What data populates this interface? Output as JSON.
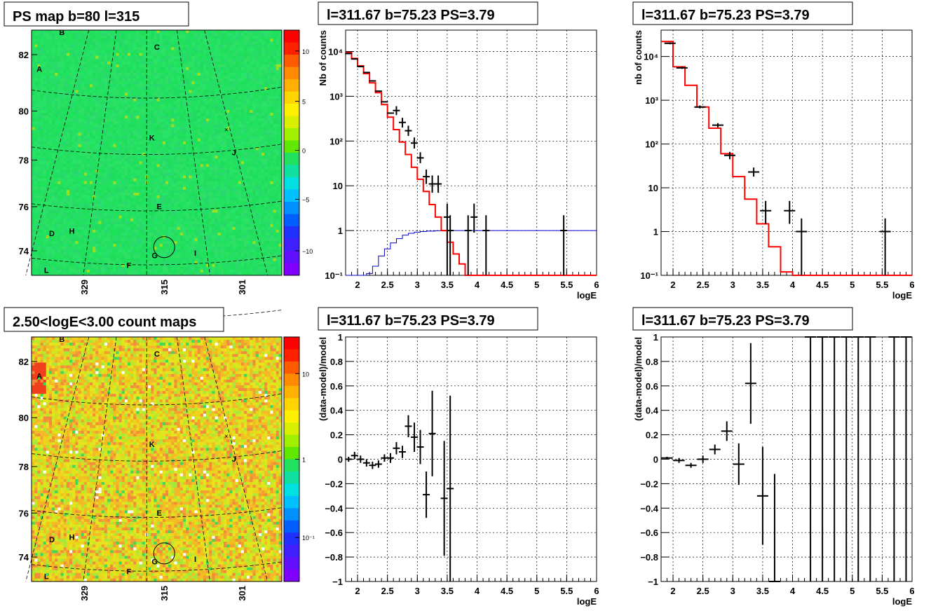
{
  "colors": {
    "model_line": "#ff0000",
    "exposure_line": "#0000cc",
    "data_marker": "#000000",
    "grid": "#000000",
    "map_bg_psmap": "#22e060",
    "map_bg_counts": "#e6e41e"
  },
  "chart_data": [
    {
      "id": "psmap",
      "type": "heatmap",
      "title": "PS map b=80 l=315",
      "xtick_labels": [
        "329",
        "315",
        "301"
      ],
      "ytick_labels": [
        "82",
        "80",
        "78",
        "76",
        "74"
      ],
      "colorbar_ticks": [
        "10",
        "5",
        "0",
        "−5",
        "−10"
      ],
      "colorbar_range": [
        -12,
        12
      ],
      "source_labels": [
        "A",
        "B",
        "C",
        "D",
        "E",
        "F",
        "G",
        "H",
        "I",
        "J",
        "K",
        "L"
      ],
      "mean_value": 0
    },
    {
      "id": "spectrum_all",
      "type": "line",
      "title": "l=311.67 b=75.23 PS=3.79",
      "xlabel": "logE",
      "ylabel": "Nb of counts",
      "xlim": [
        1.8,
        6
      ],
      "ylim": [
        0.1,
        30000
      ],
      "yscale": "log",
      "xtick_labels": [
        "2",
        "2.5",
        "3",
        "3.5",
        "4",
        "4.5",
        "5",
        "5.5",
        "6"
      ],
      "ytick_labels": [
        "10⁻¹",
        "1",
        "10",
        "10²",
        "10³",
        "10⁴"
      ],
      "grid": true,
      "model_step": {
        "edges": [
          1.8,
          1.9,
          2.0,
          2.1,
          2.2,
          2.3,
          2.4,
          2.5,
          2.6,
          2.7,
          2.8,
          2.9,
          3.0,
          3.1,
          3.2,
          3.3,
          3.4,
          3.5,
          3.6,
          3.7,
          3.8,
          3.9,
          4.0,
          4.1,
          4.2,
          6.0
        ],
        "values": [
          9500,
          7000,
          4800,
          3200,
          2000,
          1200,
          650,
          340,
          180,
          95,
          50,
          26,
          14,
          7.5,
          3.8,
          2.0,
          1.0,
          0.55,
          0.3,
          0.18,
          0.1,
          0.06,
          0.03,
          0.02,
          0.01
        ]
      },
      "exposure_step": {
        "edges": [
          1.8,
          2.15,
          2.25,
          2.35,
          2.45,
          2.55,
          2.65,
          2.75,
          2.85,
          2.95,
          3.05,
          3.15,
          3.3,
          3.5,
          6.0
        ],
        "values": [
          0.08,
          0.11,
          0.16,
          0.27,
          0.39,
          0.53,
          0.66,
          0.79,
          0.87,
          0.92,
          0.95,
          0.97,
          0.99,
          1.0
        ]
      },
      "data_points": [
        {
          "x": 1.85,
          "y": 9000
        },
        {
          "x": 1.95,
          "y": 6800
        },
        {
          "x": 2.05,
          "y": 4600
        },
        {
          "x": 2.15,
          "y": 3400
        },
        {
          "x": 2.25,
          "y": 2200
        },
        {
          "x": 2.35,
          "y": 1300
        },
        {
          "x": 2.45,
          "y": 750
        },
        {
          "x": 2.55,
          "y": 420
        },
        {
          "x": 2.65,
          "y": 480,
          "yl": 380,
          "yh": 600
        },
        {
          "x": 2.75,
          "y": 260,
          "yl": 200,
          "yh": 330
        },
        {
          "x": 2.85,
          "y": 170,
          "yl": 130,
          "yh": 220
        },
        {
          "x": 2.95,
          "y": 90,
          "yl": 68,
          "yh": 120
        },
        {
          "x": 3.05,
          "y": 42,
          "yl": 32,
          "yh": 56
        },
        {
          "x": 3.15,
          "y": 16,
          "yl": 11,
          "yh": 23
        },
        {
          "x": 3.25,
          "y": 11,
          "yl": 7,
          "yh": 17
        },
        {
          "x": 3.35,
          "y": 11,
          "yl": 7,
          "yh": 17
        },
        {
          "x": 3.5,
          "y": 2,
          "yl": 0.1,
          "yh": 4
        },
        {
          "x": 3.55,
          "y": 1,
          "yl": 0.1,
          "yh": 2.2
        },
        {
          "x": 3.85,
          "y": 1,
          "yl": 0.1,
          "yh": 2.2
        },
        {
          "x": 3.95,
          "y": 2,
          "yl": 0.9,
          "yh": 4
        },
        {
          "x": 4.15,
          "y": 1,
          "yl": 0.1,
          "yh": 2.2
        },
        {
          "x": 5.45,
          "y": 1,
          "yl": 0.1,
          "yh": 2.2
        }
      ]
    },
    {
      "id": "spectrum_src",
      "type": "line",
      "title": "l=311.67 b=75.23 PS=3.79",
      "xlabel": "logE",
      "ylabel": "nb of counts",
      "xlim": [
        1.8,
        6
      ],
      "ylim": [
        0.1,
        40000
      ],
      "yscale": "log",
      "xtick_labels": [
        "2",
        "2.5",
        "3",
        "3.5",
        "4",
        "4.5",
        "5",
        "5.5",
        "6"
      ],
      "ytick_labels": [
        "10⁻¹",
        "1",
        "10",
        "10²",
        "10³",
        "10⁴"
      ],
      "grid": true,
      "model_step": {
        "edges": [
          1.8,
          2.0,
          2.2,
          2.4,
          2.6,
          2.8,
          3.0,
          3.2,
          3.4,
          3.6,
          3.8,
          4.0,
          4.2,
          6.0
        ],
        "values": [
          22000,
          5800,
          2200,
          700,
          230,
          60,
          18,
          5.5,
          1.5,
          0.45,
          0.12,
          0.06,
          0.1
        ]
      },
      "data_points": [
        {
          "x": 1.95,
          "y": 20000,
          "yl": 19000,
          "yh": 21000
        },
        {
          "x": 2.15,
          "y": 5500,
          "yl": 5200,
          "yh": 5800
        },
        {
          "x": 2.45,
          "y": 700,
          "yl": 650,
          "yh": 760
        },
        {
          "x": 2.75,
          "y": 270,
          "yl": 240,
          "yh": 300
        },
        {
          "x": 2.95,
          "y": 55,
          "yl": 45,
          "yh": 66
        },
        {
          "x": 3.35,
          "y": 23,
          "yl": 18,
          "yh": 29
        },
        {
          "x": 3.55,
          "y": 3,
          "yl": 1.5,
          "yh": 5
        },
        {
          "x": 3.95,
          "y": 3,
          "yl": 1.5,
          "yh": 5
        },
        {
          "x": 4.15,
          "y": 1,
          "yl": 0.1,
          "yh": 2
        },
        {
          "x": 5.55,
          "y": 1,
          "yl": 0.1,
          "yh": 2
        }
      ]
    },
    {
      "id": "countmap",
      "type": "heatmap",
      "title": "2.50<logE<3.00 count maps",
      "xtick_labels": [
        "329",
        "315",
        "301"
      ],
      "ytick_labels": [
        "82",
        "80",
        "78",
        "76",
        "74"
      ],
      "colorbar_ticks": [
        "10",
        "1",
        "10⁻¹"
      ],
      "colorbar_scale": "log",
      "source_labels": [
        "A",
        "B",
        "C",
        "D",
        "E",
        "F",
        "G",
        "H",
        "I",
        "J",
        "K",
        "L"
      ]
    },
    {
      "id": "residual_all",
      "type": "scatter",
      "title": "l=311.67 b=75.23 PS=3.79",
      "xlabel": "logE",
      "ylabel": "(data-model)/model",
      "xlim": [
        1.8,
        6
      ],
      "ylim": [
        -1,
        1
      ],
      "xtick_labels": [
        "2",
        "2.5",
        "3",
        "3.5",
        "4",
        "4.5",
        "5",
        "5.5",
        "6"
      ],
      "ytick_labels": [
        "−1",
        "−0.8",
        "−0.6",
        "−0.4",
        "−0.2",
        "0",
        "0.2",
        "0.4",
        "0.6",
        "0.8",
        "1"
      ],
      "grid": true,
      "data_points": [
        {
          "x": 1.85,
          "y": 0.0,
          "e": 0.02
        },
        {
          "x": 1.95,
          "y": 0.03,
          "e": 0.03
        },
        {
          "x": 2.05,
          "y": 0.0,
          "e": 0.03
        },
        {
          "x": 2.15,
          "y": -0.03,
          "e": 0.03
        },
        {
          "x": 2.25,
          "y": -0.05,
          "e": 0.03
        },
        {
          "x": 2.35,
          "y": -0.04,
          "e": 0.03
        },
        {
          "x": 2.45,
          "y": 0.01,
          "e": 0.03
        },
        {
          "x": 2.55,
          "y": 0.01,
          "e": 0.04
        },
        {
          "x": 2.65,
          "y": 0.09,
          "e": 0.05
        },
        {
          "x": 2.75,
          "y": 0.06,
          "e": 0.05
        },
        {
          "x": 2.85,
          "y": 0.27,
          "e": 0.09
        },
        {
          "x": 2.95,
          "y": 0.18,
          "e": 0.12
        },
        {
          "x": 3.05,
          "y": 0.1,
          "e": 0.14
        },
        {
          "x": 3.15,
          "y": -0.29,
          "e": 0.19
        },
        {
          "x": 3.25,
          "y": 0.21,
          "e": 0.35
        },
        {
          "x": 3.45,
          "y": -0.32,
          "e": 0.47
        },
        {
          "x": 3.55,
          "y": -0.24,
          "e": 0.76
        }
      ]
    },
    {
      "id": "residual_src",
      "type": "scatter",
      "title": "l=311.67 b=75.23 PS=3.79",
      "xlabel": "logE",
      "ylabel": "(data-model)/model",
      "xlim": [
        1.8,
        6
      ],
      "ylim": [
        -1,
        1
      ],
      "xtick_labels": [
        "2",
        "2.5",
        "3",
        "3.5",
        "4",
        "4.5",
        "5",
        "5.5",
        "6"
      ],
      "ytick_labels": [
        "−1",
        "−0.8",
        "−0.6",
        "−0.4",
        "−0.2",
        "0",
        "0.2",
        "0.4",
        "0.6",
        "0.8",
        "1"
      ],
      "grid": true,
      "data_points": [
        {
          "x": 1.9,
          "y": 0.01,
          "e": 0.01
        },
        {
          "x": 2.1,
          "y": -0.01,
          "e": 0.02
        },
        {
          "x": 2.3,
          "y": -0.05,
          "e": 0.02
        },
        {
          "x": 2.5,
          "y": 0.0,
          "e": 0.03
        },
        {
          "x": 2.7,
          "y": 0.08,
          "e": 0.04
        },
        {
          "x": 2.9,
          "y": 0.23,
          "e": 0.08
        },
        {
          "x": 3.1,
          "y": -0.04,
          "e": 0.17
        },
        {
          "x": 3.3,
          "y": 0.62,
          "e": 0.33
        },
        {
          "x": 3.5,
          "y": -0.3,
          "e": 0.4
        },
        {
          "x": 3.7,
          "y": -1.0,
          "e": 0.88
        },
        {
          "x": 4.3,
          "y": 1.0,
          "e": 2
        },
        {
          "x": 4.5,
          "y": 1.0,
          "e": 2
        },
        {
          "x": 4.7,
          "y": 1.0,
          "e": 2
        },
        {
          "x": 4.9,
          "y": 1.0,
          "e": 2
        },
        {
          "x": 5.1,
          "y": 1.0,
          "e": 2
        },
        {
          "x": 5.3,
          "y": 1.0,
          "e": 2
        },
        {
          "x": 5.7,
          "y": 1.0,
          "e": 2
        },
        {
          "x": 5.9,
          "y": 1.0,
          "e": 2
        }
      ]
    }
  ]
}
